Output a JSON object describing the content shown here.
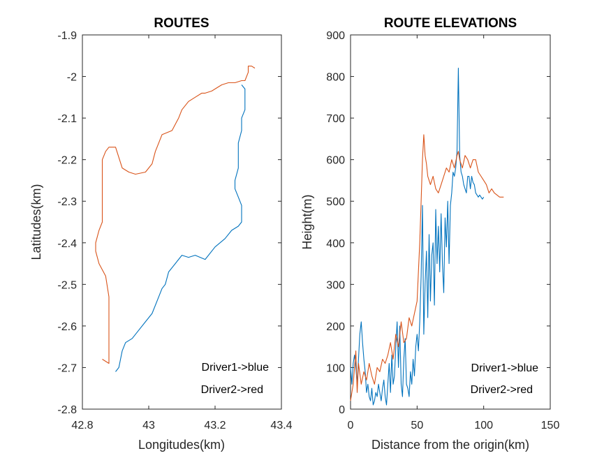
{
  "chart_data": [
    {
      "type": "line",
      "title": "ROUTES",
      "xlabel": "Longitudes(km)",
      "ylabel": "Latitudes(km)",
      "xlim": [
        42.8,
        43.4
      ],
      "ylim": [
        -2.8,
        -1.9
      ],
      "xticks": [
        "42.8",
        "43",
        "43.2",
        "43.4"
      ],
      "yticks": [
        "-1.9",
        "-2",
        "-2.1",
        "-2.2",
        "-2.3",
        "-2.4",
        "-2.5",
        "-2.6",
        "-2.7",
        "-2.8"
      ],
      "annotations": [
        "Driver1->blue",
        "Driver2->red"
      ],
      "colors": {
        "driver1": "#0072BD",
        "driver2": "#D95319"
      },
      "series": [
        {
          "color": "#0072BD",
          "x": [
            42.9,
            42.91,
            42.92,
            42.93,
            42.95,
            42.97,
            42.99,
            43.01,
            43.03,
            43.04,
            43.05,
            43.06,
            43.08,
            43.1,
            43.12,
            43.14,
            43.17,
            43.2,
            43.23,
            43.25,
            43.27,
            43.28,
            43.28,
            43.27,
            43.26,
            43.26,
            43.27,
            43.27,
            43.27,
            43.28,
            43.28,
            43.29,
            43.29,
            43.29,
            43.29,
            43.28
          ],
          "y": [
            -2.71,
            -2.7,
            -2.66,
            -2.64,
            -2.63,
            -2.61,
            -2.59,
            -2.57,
            -2.53,
            -2.51,
            -2.5,
            -2.47,
            -2.45,
            -2.43,
            -2.435,
            -2.43,
            -2.44,
            -2.41,
            -2.39,
            -2.37,
            -2.36,
            -2.35,
            -2.31,
            -2.29,
            -2.27,
            -2.25,
            -2.22,
            -2.19,
            -2.16,
            -2.13,
            -2.1,
            -2.08,
            -2.06,
            -2.05,
            -2.03,
            -2.02
          ]
        },
        {
          "color": "#D95319",
          "x": [
            42.86,
            42.88,
            42.88,
            42.88,
            42.87,
            42.85,
            42.84,
            42.84,
            42.85,
            42.86,
            42.86,
            42.86,
            42.86,
            42.87,
            42.88,
            42.9,
            42.92,
            42.94,
            42.96,
            42.99,
            43.01,
            43.02,
            43.03,
            43.04,
            43.07,
            43.09,
            43.1,
            43.12,
            43.14,
            43.16,
            43.17,
            43.19,
            43.2,
            43.22,
            43.24,
            43.26,
            43.28,
            43.29,
            43.3,
            43.3,
            43.31,
            43.32
          ],
          "y": [
            -2.68,
            -2.69,
            -2.62,
            -2.53,
            -2.48,
            -2.45,
            -2.42,
            -2.4,
            -2.37,
            -2.35,
            -2.31,
            -2.25,
            -2.2,
            -2.18,
            -2.17,
            -2.17,
            -2.22,
            -2.23,
            -2.235,
            -2.23,
            -2.21,
            -2.18,
            -2.16,
            -2.14,
            -2.13,
            -2.1,
            -2.08,
            -2.06,
            -2.05,
            -2.04,
            -2.04,
            -2.035,
            -2.03,
            -2.02,
            -2.015,
            -2.015,
            -2.01,
            -2.01,
            -1.99,
            -1.975,
            -1.975,
            -1.98
          ]
        }
      ]
    },
    {
      "type": "line",
      "title": "ROUTE ELEVATIONS",
      "xlabel": "Distance from the origin(km)",
      "ylabel": "Height(m)",
      "xlim": [
        0,
        150
      ],
      "ylim": [
        0,
        900
      ],
      "xticks": [
        "0",
        "50",
        "100",
        "150"
      ],
      "yticks": [
        "0",
        "100",
        "200",
        "300",
        "400",
        "500",
        "600",
        "700",
        "800",
        "900"
      ],
      "annotations": [
        "Driver1->blue",
        "Driver2->red"
      ],
      "series": [
        {
          "color": "#0072BD",
          "x": [
            0,
            1,
            2,
            3,
            4,
            5,
            6,
            7,
            8,
            9,
            10,
            11,
            12,
            13,
            14,
            15,
            16,
            17,
            18,
            19,
            20,
            21,
            22,
            23,
            24,
            25,
            26,
            27,
            28,
            29,
            30,
            31,
            32,
            33,
            34,
            35,
            36,
            37,
            38,
            39,
            40,
            41,
            42,
            43,
            44,
            45,
            46,
            47,
            48,
            49,
            50,
            51,
            52,
            53,
            54,
            55,
            56,
            57,
            58,
            59,
            60,
            61,
            62,
            63,
            64,
            65,
            66,
            67,
            68,
            69,
            70,
            71,
            72,
            73,
            74,
            75,
            76,
            77,
            78,
            79,
            80,
            81,
            82,
            83,
            84,
            85,
            86,
            87,
            88,
            89,
            90,
            91,
            92,
            93,
            94,
            95,
            96,
            97,
            98,
            99,
            100
          ],
          "y": [
            100,
            60,
            110,
            130,
            100,
            60,
            120,
            180,
            210,
            160,
            120,
            90,
            40,
            60,
            30,
            20,
            50,
            10,
            20,
            40,
            30,
            60,
            40,
            20,
            50,
            70,
            30,
            10,
            60,
            110,
            40,
            130,
            60,
            80,
            150,
            210,
            100,
            200,
            60,
            30,
            120,
            170,
            60,
            50,
            30,
            90,
            60,
            120,
            80,
            150,
            180,
            140,
            210,
            320,
            490,
            180,
            300,
            380,
            220,
            420,
            260,
            370,
            400,
            250,
            480,
            350,
            440,
            330,
            470,
            350,
            280,
            460,
            390,
            500,
            350,
            490,
            520,
            570,
            560,
            580,
            620,
            820,
            610,
            570,
            560,
            540,
            530,
            520,
            560,
            560,
            530,
            560,
            545,
            540,
            520,
            515,
            510,
            515,
            510,
            505,
            510
          ]
        },
        {
          "color": "#D95319",
          "x": [
            0,
            2,
            4,
            5,
            6,
            8,
            10,
            12,
            14,
            16,
            18,
            20,
            22,
            24,
            26,
            28,
            30,
            32,
            34,
            36,
            38,
            40,
            42,
            44,
            46,
            48,
            50,
            51,
            52,
            53,
            54,
            55,
            56,
            57,
            58,
            60,
            62,
            64,
            66,
            68,
            70,
            72,
            74,
            76,
            78,
            80,
            81,
            82,
            84,
            86,
            88,
            90,
            92,
            94,
            96,
            98,
            100,
            102,
            104,
            106,
            108,
            110,
            112,
            114,
            115
          ],
          "y": [
            20,
            60,
            140,
            40,
            110,
            60,
            90,
            70,
            110,
            80,
            60,
            100,
            90,
            120,
            110,
            130,
            160,
            120,
            180,
            150,
            210,
            160,
            170,
            220,
            200,
            230,
            260,
            330,
            400,
            500,
            600,
            660,
            610,
            590,
            560,
            540,
            560,
            530,
            520,
            540,
            560,
            580,
            570,
            600,
            580,
            610,
            620,
            600,
            580,
            610,
            600,
            580,
            600,
            600,
            570,
            560,
            550,
            540,
            520,
            530,
            520,
            515,
            510,
            510,
            510
          ]
        }
      ]
    }
  ]
}
